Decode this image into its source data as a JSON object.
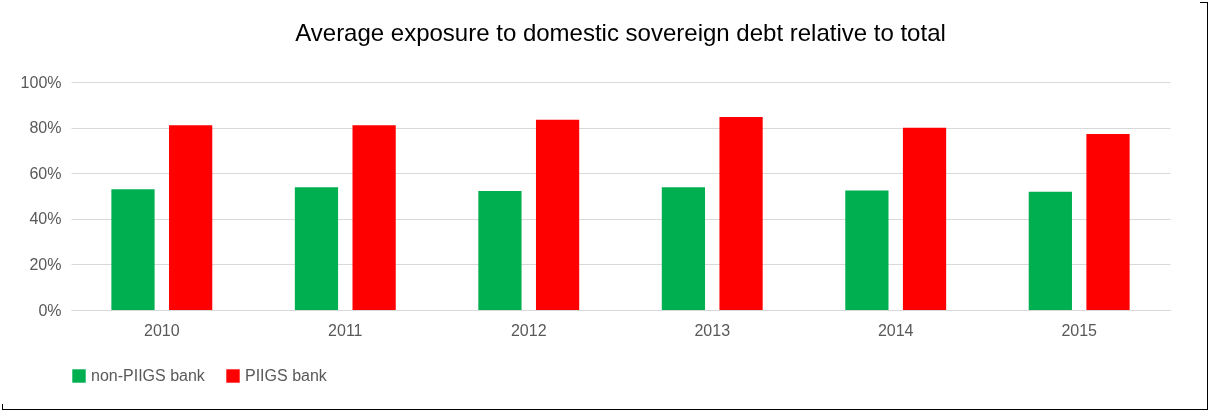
{
  "chart_data": {
    "type": "bar",
    "title": "Average exposure to domestic sovereign debt relative to total",
    "categories": [
      "2010",
      "2011",
      "2012",
      "2013",
      "2014",
      "2015"
    ],
    "series": [
      {
        "name": "non-PIIGS bank",
        "color": "#00b050",
        "values": [
          0.53,
          0.538,
          0.522,
          0.538,
          0.524,
          0.519
        ]
      },
      {
        "name": "PIIGS bank",
        "color": "#ff0000",
        "values": [
          0.81,
          0.81,
          0.834,
          0.846,
          0.799,
          0.772
        ]
      }
    ],
    "ylim": [
      0,
      1
    ],
    "yticks": [
      {
        "value": 0,
        "label": "0%"
      },
      {
        "value": 0.2,
        "label": "20%"
      },
      {
        "value": 0.4,
        "label": "40%"
      },
      {
        "value": 0.6,
        "label": "60%"
      },
      {
        "value": 0.8,
        "label": "80%"
      },
      {
        "value": 1,
        "label": "100%"
      }
    ],
    "grid": "y",
    "legend": "bottom"
  }
}
